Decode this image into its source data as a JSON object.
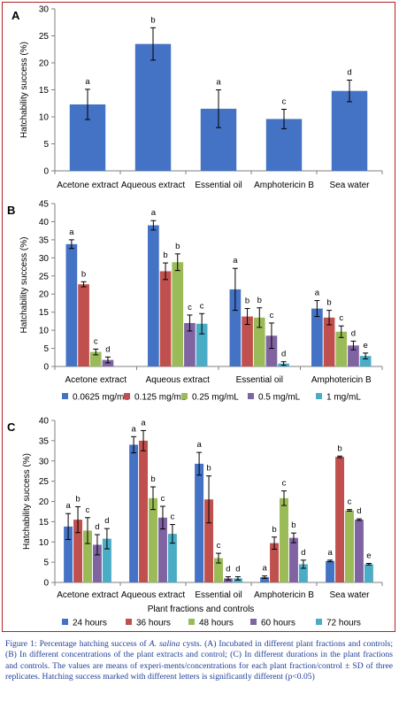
{
  "colors": {
    "series": [
      "#4472c4",
      "#c0504d",
      "#9bbb59",
      "#8064a2",
      "#4bacc6"
    ],
    "frame": "#b22222",
    "caption": "#1f3c99"
  },
  "chart_data": [
    {
      "panel": "A",
      "type": "bar",
      "ylabel": "Hatchability success (%)",
      "ylim": [
        0,
        30
      ],
      "yticks": [
        0,
        5,
        10,
        15,
        20,
        25,
        30
      ],
      "categories": [
        "Acetone extract",
        "Aqueous extract",
        "Essential oil",
        "Amphotericin B",
        "Sea water"
      ],
      "series": [
        {
          "values": [
            12.3,
            23.5,
            11.5,
            9.6,
            14.8
          ],
          "err": [
            2.8,
            3.0,
            3.5,
            1.8,
            2.0
          ],
          "letters": [
            "a",
            "b",
            "a",
            "c",
            "d"
          ]
        }
      ]
    },
    {
      "panel": "B",
      "type": "bar",
      "ylabel": "Hatchability success (%)",
      "ylim": [
        0,
        45
      ],
      "yticks": [
        0,
        5,
        10,
        15,
        20,
        25,
        30,
        35,
        40,
        45
      ],
      "categories": [
        "Acetone extract",
        "Aqueous extract",
        "Essential oil",
        "Amphotericin  B"
      ],
      "legend_position": "bottom",
      "series": [
        {
          "name": "0.0625 mg/mL",
          "values": [
            33.8,
            39.0,
            21.3,
            16.0
          ],
          "err": [
            1.2,
            1.3,
            5.8,
            2.2
          ],
          "letters": [
            "a",
            "a",
            "a",
            "a"
          ]
        },
        {
          "name": "0.125 mg/mL",
          "values": [
            22.7,
            26.3,
            13.8,
            13.5
          ],
          "err": [
            0.7,
            2.3,
            2.2,
            2.0
          ],
          "letters": [
            "b",
            "b",
            "b",
            "b"
          ]
        },
        {
          "name": "0.25 mg/mL",
          "values": [
            4.0,
            28.8,
            13.5,
            9.6
          ],
          "err": [
            0.8,
            2.3,
            2.7,
            1.6
          ],
          "letters": [
            "c",
            "b",
            "b",
            "c"
          ]
        },
        {
          "name": "0.5 mg/mL",
          "values": [
            1.8,
            12.0,
            8.5,
            5.8
          ],
          "err": [
            0.8,
            2.2,
            3.5,
            1.2
          ],
          "letters": [
            "d",
            "c",
            "c",
            "d"
          ]
        },
        {
          "name": "1 mg/mL",
          "values": [
            0,
            11.8,
            0.8,
            2.9
          ],
          "err": [
            0,
            2.8,
            0.5,
            0.8
          ],
          "letters": [
            "",
            "c",
            "d",
            "e"
          ]
        }
      ]
    },
    {
      "panel": "C",
      "type": "bar",
      "ylabel": "Hatchability success (%)",
      "xlabel": "Plant fractions and controls",
      "ylim": [
        0,
        40
      ],
      "yticks": [
        0,
        5,
        10,
        15,
        20,
        25,
        30,
        35,
        40
      ],
      "categories": [
        "Acetone extract",
        "Aqueous extract",
        "Essential oil",
        "Amphotericin B",
        "Sea water"
      ],
      "legend_position": "bottom",
      "series": [
        {
          "name": "24 hours",
          "values": [
            13.8,
            34.0,
            29.3,
            1.3,
            5.3
          ],
          "err": [
            3.2,
            2.0,
            2.8,
            0.3,
            0.2
          ],
          "letters": [
            "a",
            "a",
            "a",
            "a",
            "a"
          ]
        },
        {
          "name": "36 hours",
          "values": [
            15.5,
            35.0,
            20.5,
            9.7,
            31.0
          ],
          "err": [
            3.2,
            2.5,
            5.8,
            1.5,
            0.2
          ],
          "letters": [
            "b",
            "a",
            "b",
            "b",
            "b"
          ]
        },
        {
          "name": "48 hours",
          "values": [
            12.8,
            20.8,
            6.0,
            20.8,
            17.8
          ],
          "err": [
            3.2,
            2.8,
            1.2,
            1.8,
            0.2
          ],
          "letters": [
            "c",
            "b",
            "c",
            "c",
            "c"
          ]
        },
        {
          "name": "60 hours",
          "values": [
            9.3,
            16.0,
            1.0,
            11.0,
            15.5
          ],
          "err": [
            2.5,
            2.8,
            0.4,
            1.2,
            0.2
          ],
          "letters": [
            "d",
            "c",
            "d",
            "b",
            "d"
          ]
        },
        {
          "name": "72 hours",
          "values": [
            10.8,
            12.0,
            1.0,
            4.5,
            4.5
          ],
          "err": [
            2.5,
            2.3,
            0.4,
            1.0,
            0.2
          ],
          "letters": [
            "d",
            "c",
            "d",
            "d",
            "e"
          ]
        }
      ]
    }
  ],
  "caption": {
    "prefix": "Figure 1: Percentage hatching success of ",
    "species": "A. salina",
    "body": " cysts. (A) Incubated in different plant fractions and controls; (B) In different concentrations of the plant extracts and control; (C) In different durations in the plant fractions and controls. The values are means of experi-ments/concentrations for each plant fraction/control ± SD of three replicates. Hatching success marked with different letters is significantly different (p<0.05)"
  }
}
